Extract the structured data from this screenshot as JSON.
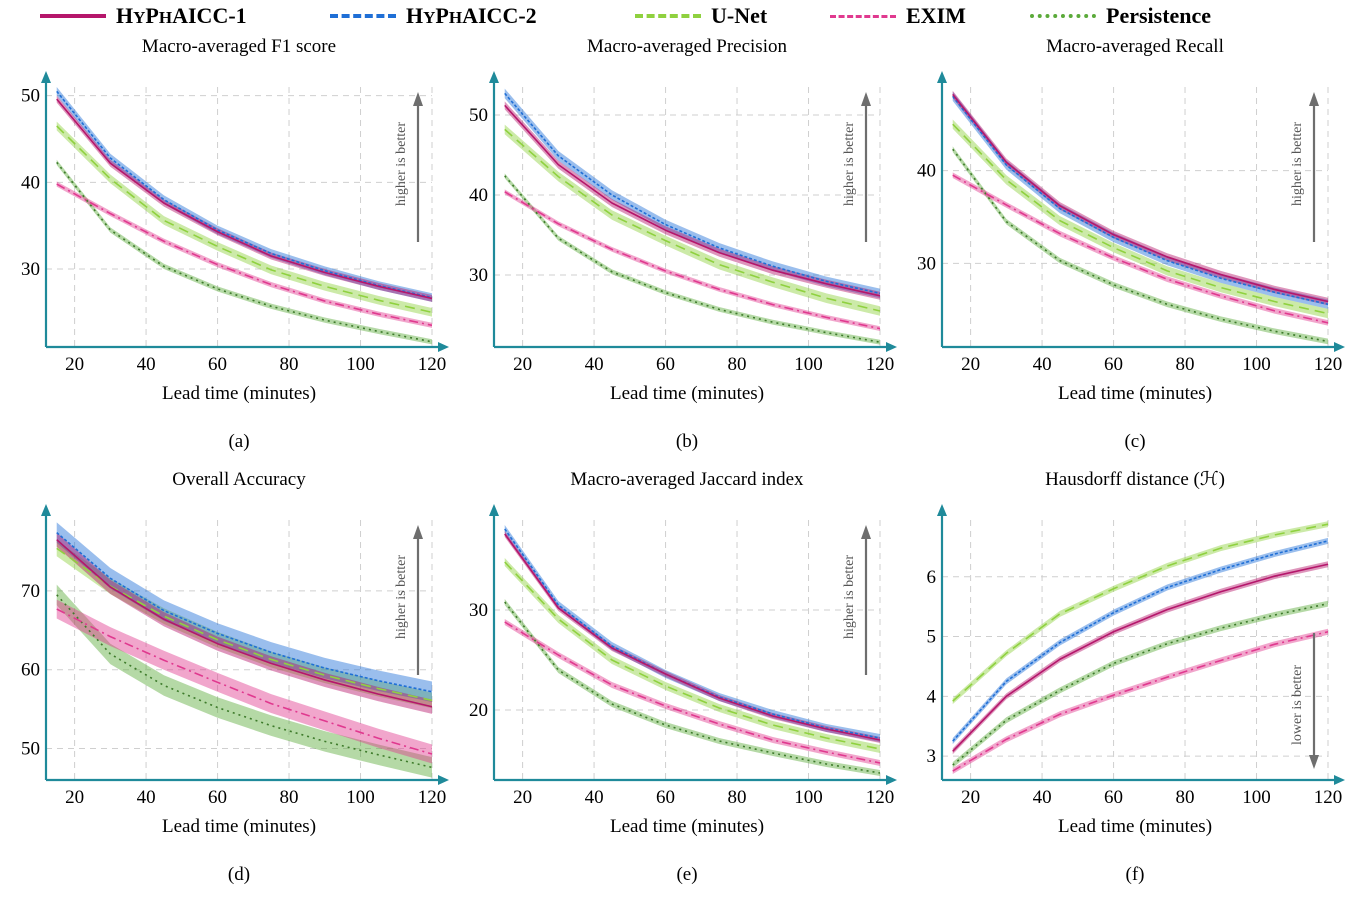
{
  "legend": [
    {
      "name": "HyPhAICC-1",
      "color": "#B5166B",
      "dash": "solid",
      "width": 4.5
    },
    {
      "name": "HyPhAICC-2",
      "color": "#1F6FD6",
      "dash": "3 2",
      "width": 4.5
    },
    {
      "name": "U-Net",
      "color": "#8FD13F",
      "dash": "10 6",
      "width": 4.5
    },
    {
      "name": "EXIM",
      "color": "#E0398F",
      "dash": "9 4 2 4",
      "width": 3.5
    },
    {
      "name": "Persistence",
      "color": "#5BAA3A",
      "dash": "2 4",
      "width": 4.5
    }
  ],
  "chart_data": [
    {
      "type": "line",
      "title": "Macro-averaged F1 score",
      "caption": "(a)",
      "xlabel": "Lead time (minutes)",
      "ylabel": "",
      "xlim": [
        12,
        120
      ],
      "ylim": [
        21,
        51
      ],
      "xticks": [
        20,
        40,
        60,
        80,
        100,
        120
      ],
      "yticks": [
        30,
        40,
        50
      ],
      "grid": true,
      "annotation": "higher is better",
      "arrow": "up",
      "x": [
        15,
        30,
        45,
        60,
        75,
        90,
        105,
        120
      ],
      "series": [
        {
          "name": "HyPhAICC-1",
          "values": [
            49.6,
            42.2,
            37.6,
            34.3,
            31.5,
            29.6,
            28.0,
            26.6
          ],
          "band": 0.4
        },
        {
          "name": "HyPhAICC-2",
          "values": [
            50.5,
            42.8,
            38.0,
            34.5,
            31.8,
            29.8,
            28.1,
            26.7
          ],
          "band": 0.5
        },
        {
          "name": "U-Net",
          "values": [
            46.5,
            40.4,
            35.6,
            32.6,
            29.9,
            28.0,
            26.4,
            25.0
          ],
          "band": 0.5
        },
        {
          "name": "EXIM",
          "values": [
            39.8,
            36.4,
            33.2,
            30.5,
            28.2,
            26.3,
            24.8,
            23.5
          ],
          "band": 0.3
        },
        {
          "name": "Persistence",
          "values": [
            42.3,
            34.5,
            30.3,
            27.7,
            25.7,
            24.1,
            22.8,
            21.6
          ],
          "band": 0.3
        }
      ]
    },
    {
      "type": "line",
      "title": "Macro-averaged Precision",
      "caption": "(b)",
      "xlabel": "Lead time (minutes)",
      "ylabel": "",
      "xlim": [
        12,
        120
      ],
      "ylim": [
        21,
        53.5
      ],
      "xticks": [
        20,
        40,
        60,
        80,
        100,
        120
      ],
      "yticks": [
        30,
        40,
        50
      ],
      "grid": true,
      "annotation": "higher is better",
      "arrow": "up",
      "x": [
        15,
        30,
        45,
        60,
        75,
        90,
        105,
        120
      ],
      "series": [
        {
          "name": "HyPhAICC-1",
          "values": [
            51.2,
            43.8,
            39.0,
            35.6,
            32.8,
            30.6,
            28.9,
            27.4
          ],
          "band": 0.5
        },
        {
          "name": "HyPhAICC-2",
          "values": [
            52.7,
            44.9,
            40.0,
            36.3,
            33.4,
            31.1,
            29.2,
            27.7
          ],
          "band": 0.6
        },
        {
          "name": "U-Net",
          "values": [
            48.2,
            42.3,
            37.5,
            34.3,
            31.3,
            29.1,
            27.1,
            25.5
          ],
          "band": 0.6
        },
        {
          "name": "EXIM",
          "values": [
            40.4,
            36.4,
            33.2,
            30.5,
            28.2,
            26.3,
            24.7,
            23.3
          ],
          "band": 0.3
        },
        {
          "name": "Persistence",
          "values": [
            42.4,
            34.6,
            30.4,
            27.8,
            25.7,
            24.1,
            22.8,
            21.6
          ],
          "band": 0.3
        }
      ]
    },
    {
      "type": "line",
      "title": "Macro-averaged Recall",
      "caption": "(c)",
      "xlabel": "Lead time (minutes)",
      "ylabel": "",
      "xlim": [
        12,
        120
      ],
      "ylim": [
        21,
        49
      ],
      "xticks": [
        20,
        40,
        60,
        80,
        100,
        120
      ],
      "yticks": [
        30,
        40
      ],
      "grid": true,
      "annotation": "higher is better",
      "arrow": "up",
      "x": [
        15,
        30,
        45,
        60,
        75,
        90,
        105,
        120
      ],
      "series": [
        {
          "name": "HyPhAICC-1",
          "values": [
            48.2,
            40.9,
            36.2,
            33.1,
            30.7,
            28.8,
            27.2,
            25.9
          ],
          "band": 0.4
        },
        {
          "name": "HyPhAICC-2",
          "values": [
            48.0,
            40.6,
            35.9,
            32.8,
            30.3,
            28.4,
            26.9,
            25.6
          ],
          "band": 0.5
        },
        {
          "name": "U-Net",
          "values": [
            45.0,
            39.0,
            34.6,
            31.7,
            29.2,
            27.4,
            25.9,
            24.6
          ],
          "band": 0.5
        },
        {
          "name": "EXIM",
          "values": [
            39.5,
            36.3,
            33.2,
            30.6,
            28.3,
            26.5,
            24.9,
            23.6
          ],
          "band": 0.3
        },
        {
          "name": "Persistence",
          "values": [
            42.3,
            34.5,
            30.3,
            27.7,
            25.6,
            24.0,
            22.7,
            21.6
          ],
          "band": 0.3
        }
      ]
    },
    {
      "type": "line",
      "title": "Overall Accuracy",
      "caption": "(d)",
      "xlabel": "Lead time (minutes)",
      "ylabel": "",
      "xlim": [
        12,
        120
      ],
      "ylim": [
        46,
        79
      ],
      "xticks": [
        20,
        40,
        60,
        80,
        100,
        120
      ],
      "yticks": [
        50,
        60,
        70
      ],
      "grid": true,
      "annotation": "higher is better",
      "arrow": "up",
      "x": [
        15,
        30,
        45,
        60,
        75,
        90,
        105,
        120
      ],
      "series": [
        {
          "name": "HyPhAICC-1",
          "values": [
            76.5,
            70.5,
            66.4,
            63.3,
            60.8,
            58.7,
            56.9,
            55.3
          ],
          "band": 0.9
        },
        {
          "name": "HyPhAICC-2",
          "values": [
            77.4,
            71.6,
            67.5,
            64.6,
            62.2,
            60.2,
            58.6,
            57.2
          ],
          "band": 1.3
        },
        {
          "name": "U-Net",
          "values": [
            75.4,
            70.6,
            66.8,
            63.8,
            61.3,
            59.3,
            57.6,
            56.1
          ],
          "band": 1.0
        },
        {
          "name": "EXIM",
          "values": [
            67.7,
            64.2,
            61.2,
            58.4,
            55.7,
            53.5,
            51.3,
            49.3
          ],
          "band": 1.2
        },
        {
          "name": "Persistence",
          "values": [
            69.5,
            62.0,
            58.0,
            55.2,
            52.9,
            50.9,
            49.2,
            47.6
          ],
          "band": 1.3
        }
      ]
    },
    {
      "type": "line",
      "title": "Macro-averaged Jaccard index",
      "caption": "(e)",
      "xlabel": "Lead time (minutes)",
      "ylabel": "",
      "xlim": [
        12,
        120
      ],
      "ylim": [
        13,
        39
      ],
      "xticks": [
        20,
        40,
        60,
        80,
        100,
        120
      ],
      "yticks": [
        20,
        30
      ],
      "grid": true,
      "annotation": "higher is better",
      "arrow": "up",
      "x": [
        15,
        30,
        45,
        60,
        75,
        90,
        105,
        120
      ],
      "series": [
        {
          "name": "HyPhAICC-1",
          "values": [
            37.6,
            30.2,
            26.2,
            23.6,
            21.2,
            19.4,
            18.1,
            17.0
          ],
          "band": 0.3
        },
        {
          "name": "HyPhAICC-2",
          "values": [
            38.1,
            30.5,
            26.4,
            23.6,
            21.3,
            19.6,
            18.2,
            17.2
          ],
          "band": 0.4
        },
        {
          "name": "U-Net",
          "values": [
            34.8,
            29.1,
            25.0,
            22.4,
            20.2,
            18.5,
            17.2,
            16.1
          ],
          "band": 0.4
        },
        {
          "name": "EXIM",
          "values": [
            28.8,
            25.5,
            22.5,
            20.4,
            18.6,
            17.0,
            15.8,
            14.7
          ],
          "band": 0.3
        },
        {
          "name": "Persistence",
          "values": [
            30.8,
            24.0,
            20.6,
            18.5,
            16.9,
            15.7,
            14.6,
            13.7
          ],
          "band": 0.3
        }
      ]
    },
    {
      "type": "line",
      "title": "Hausdorff distance (ℋ)",
      "caption": "(f)",
      "xlabel": "Lead time (minutes)",
      "ylabel": "",
      "xlim": [
        12,
        120
      ],
      "ylim": [
        2.6,
        6.95
      ],
      "xticks": [
        20,
        40,
        60,
        80,
        100,
        120
      ],
      "yticks": [
        3,
        4,
        5,
        6
      ],
      "grid": true,
      "annotation": "lower is better",
      "arrow": "down",
      "x": [
        15,
        30,
        45,
        60,
        75,
        90,
        105,
        120
      ],
      "series": [
        {
          "name": "HyPhAICC-1",
          "values": [
            3.08,
            4.0,
            4.62,
            5.08,
            5.45,
            5.75,
            6.01,
            6.21
          ],
          "band": 0.05
        },
        {
          "name": "HyPhAICC-2",
          "values": [
            3.25,
            4.25,
            4.9,
            5.4,
            5.82,
            6.12,
            6.38,
            6.6
          ],
          "band": 0.05
        },
        {
          "name": "U-Net",
          "values": [
            3.92,
            4.72,
            5.38,
            5.8,
            6.18,
            6.48,
            6.7,
            6.88
          ],
          "band": 0.05
        },
        {
          "name": "EXIM",
          "values": [
            2.75,
            3.28,
            3.7,
            4.02,
            4.32,
            4.6,
            4.87,
            5.08
          ],
          "band": 0.05
        },
        {
          "name": "Persistence",
          "values": [
            2.85,
            3.6,
            4.1,
            4.55,
            4.88,
            5.14,
            5.36,
            5.55
          ],
          "band": 0.05
        }
      ]
    }
  ]
}
